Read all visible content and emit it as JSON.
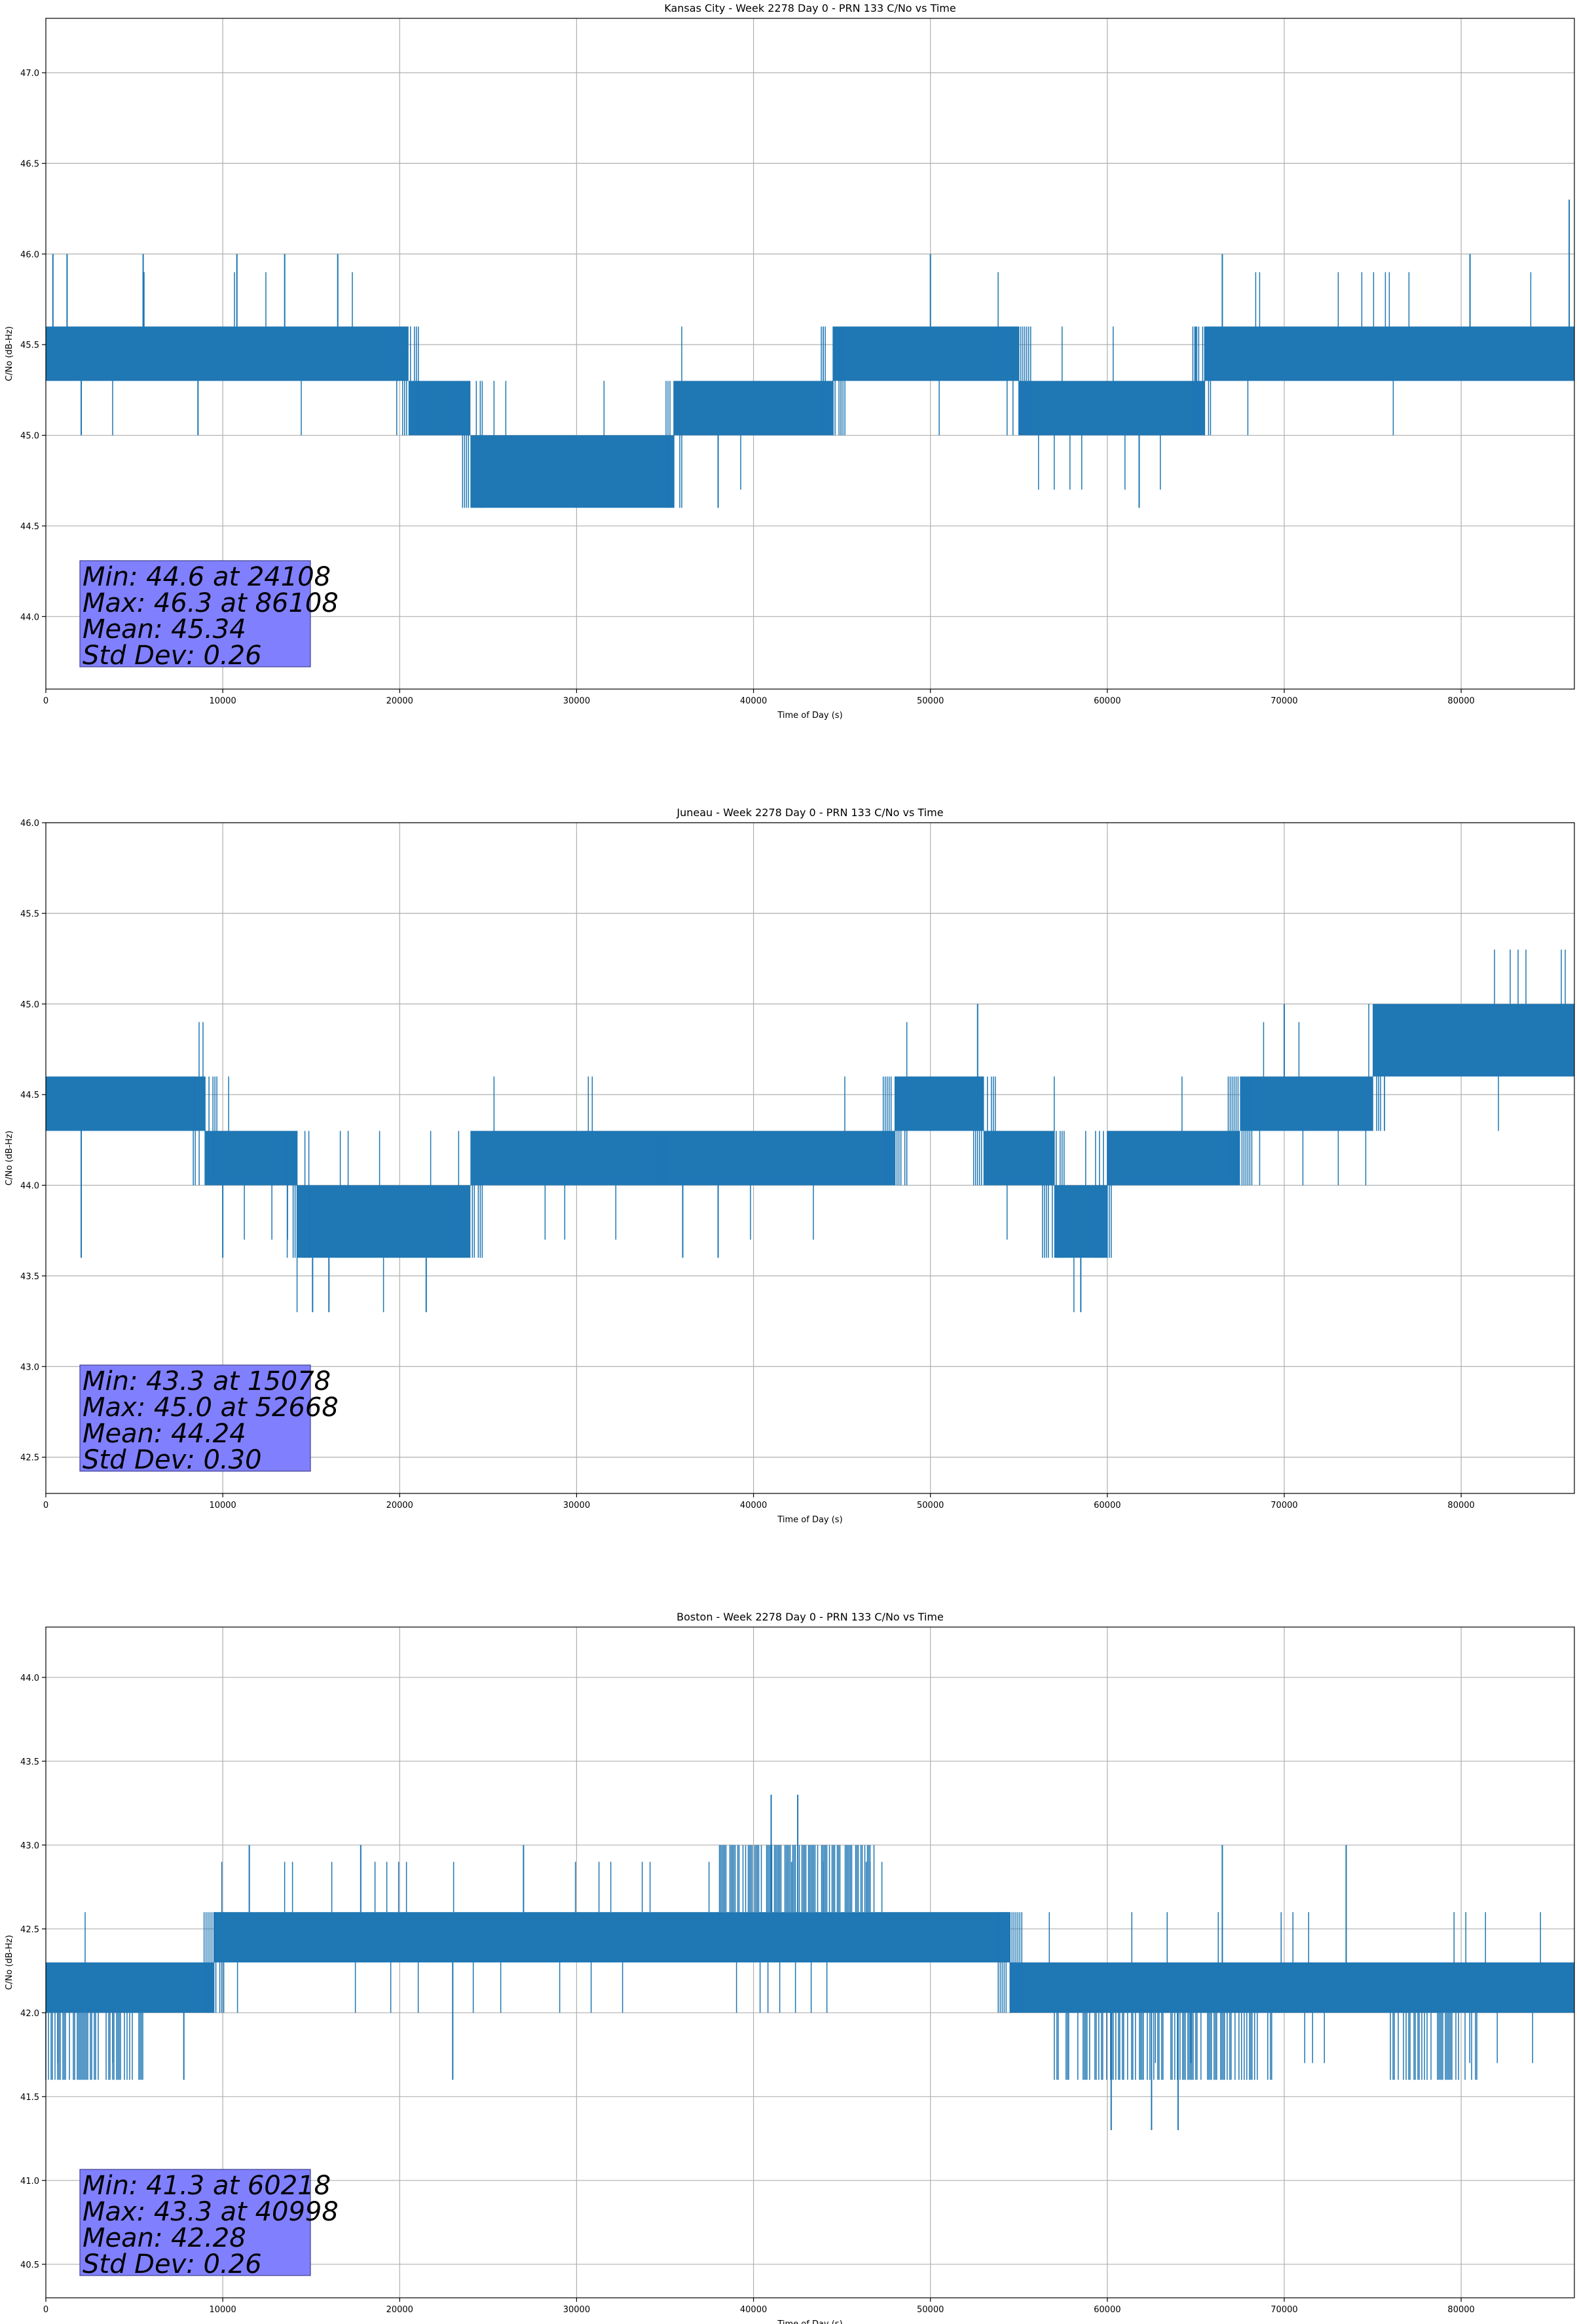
{
  "chart_data": [
    {
      "type": "line",
      "title": "Kansas City - Week 2278 Day 0 - PRN 133 C/No vs Time",
      "xlabel": "Time of Day (s)",
      "ylabel": "C/No (dB-Hz)",
      "xlim": [
        0,
        86400
      ],
      "ylim": [
        43.6,
        47.3
      ],
      "xticks": [
        0,
        10000,
        20000,
        30000,
        40000,
        50000,
        60000,
        70000,
        80000
      ],
      "yticks": [
        44.0,
        44.5,
        45.0,
        45.5,
        46.0,
        46.5,
        47.0
      ],
      "grid": true,
      "color": "#1f77b4",
      "baseline_segments": [
        {
          "x": [
            0,
            20500
          ],
          "low": 45.3,
          "high": 45.6
        },
        {
          "x": [
            20500,
            24000
          ],
          "low": 45.0,
          "high": 45.3
        },
        {
          "x": [
            24000,
            35500
          ],
          "low": 44.6,
          "high": 45.0
        },
        {
          "x": [
            35500,
            44500
          ],
          "low": 45.0,
          "high": 45.3
        },
        {
          "x": [
            44500,
            55000
          ],
          "low": 45.3,
          "high": 45.6
        },
        {
          "x": [
            55000,
            65500
          ],
          "low": 45.0,
          "high": 45.3
        },
        {
          "x": [
            65500,
            86400
          ],
          "low": 45.3,
          "high": 45.6
        }
      ],
      "spikes": [
        {
          "x": 400,
          "y": 46.0
        },
        {
          "x": 1200,
          "y": 46.0
        },
        {
          "x": 5500,
          "y": 46.0
        },
        {
          "x": 10800,
          "y": 46.0
        },
        {
          "x": 13500,
          "y": 46.0
        },
        {
          "x": 16500,
          "y": 46.0
        },
        {
          "x": 50000,
          "y": 46.0
        },
        {
          "x": 66500,
          "y": 46.0
        },
        {
          "x": 80500,
          "y": 46.0
        },
        {
          "x": 86108,
          "y": 46.3
        },
        {
          "x": 24108,
          "y": 44.6
        },
        {
          "x": 38000,
          "y": 44.6
        },
        {
          "x": 61800,
          "y": 44.6
        },
        {
          "x": 2000,
          "y": 45.0
        },
        {
          "x": 8600,
          "y": 45.0
        }
      ],
      "stats": {
        "min": "Min: 44.6 at 24108",
        "max": "Max: 46.3 at 86108",
        "mean": "Mean: 45.34",
        "std": "Std Dev: 0.26"
      }
    },
    {
      "type": "line",
      "title": "Juneau - Week 2278 Day 0 - PRN 133 C/No vs Time",
      "xlabel": "Time of Day (s)",
      "ylabel": "C/No (dB-Hz)",
      "xlim": [
        0,
        86400
      ],
      "ylim": [
        42.3,
        46.0
      ],
      "xticks": [
        0,
        10000,
        20000,
        30000,
        40000,
        50000,
        60000,
        70000,
        80000
      ],
      "yticks": [
        42.5,
        43.0,
        43.5,
        44.0,
        44.5,
        45.0,
        45.5,
        46.0
      ],
      "grid": true,
      "color": "#1f77b4",
      "baseline_segments": [
        {
          "x": [
            0,
            9000
          ],
          "low": 44.3,
          "high": 44.6
        },
        {
          "x": [
            9000,
            14200
          ],
          "low": 44.0,
          "high": 44.3
        },
        {
          "x": [
            14200,
            24000
          ],
          "low": 43.6,
          "high": 44.0
        },
        {
          "x": [
            24000,
            34500
          ],
          "low": 44.0,
          "high": 44.3
        },
        {
          "x": [
            34500,
            48000
          ],
          "low": 44.0,
          "high": 44.3
        },
        {
          "x": [
            48000,
            53000
          ],
          "low": 44.3,
          "high": 44.6
        },
        {
          "x": [
            53000,
            57000
          ],
          "low": 44.0,
          "high": 44.3
        },
        {
          "x": [
            57000,
            60000
          ],
          "low": 43.6,
          "high": 44.0
        },
        {
          "x": [
            60000,
            67500
          ],
          "low": 44.0,
          "high": 44.3
        },
        {
          "x": [
            67500,
            75000
          ],
          "low": 44.3,
          "high": 44.6
        },
        {
          "x": [
            75000,
            86400
          ],
          "low": 44.6,
          "high": 45.0
        }
      ],
      "spikes": [
        {
          "x": 15078,
          "y": 43.3
        },
        {
          "x": 16000,
          "y": 43.3
        },
        {
          "x": 21500,
          "y": 43.3
        },
        {
          "x": 58500,
          "y": 43.3
        },
        {
          "x": 52668,
          "y": 45.0
        },
        {
          "x": 70000,
          "y": 45.0
        },
        {
          "x": 2000,
          "y": 43.6
        },
        {
          "x": 36000,
          "y": 43.6
        },
        {
          "x": 38000,
          "y": 43.6
        },
        {
          "x": 10000,
          "y": 43.6
        }
      ],
      "stats": {
        "min": "Min: 43.3 at 15078",
        "max": "Max: 45.0 at 52668",
        "mean": "Mean: 44.24",
        "std": "Std Dev: 0.30"
      }
    },
    {
      "type": "line",
      "title": "Boston - Week 2278 Day 0 - PRN 133 C/No vs Time",
      "xlabel": "Time of Day (s)",
      "ylabel": "C/No (dB-Hz)",
      "xlim": [
        0,
        86400
      ],
      "ylim": [
        40.3,
        44.3
      ],
      "xticks": [
        0,
        10000,
        20000,
        30000,
        40000,
        50000,
        60000,
        70000,
        80000
      ],
      "yticks": [
        40.5,
        41.0,
        41.5,
        42.0,
        42.5,
        43.0,
        43.5,
        44.0
      ],
      "grid": true,
      "color": "#1f77b4",
      "baseline_segments": [
        {
          "x": [
            0,
            9500
          ],
          "low": 42.0,
          "high": 42.3
        },
        {
          "x": [
            9500,
            54500
          ],
          "low": 42.3,
          "high": 42.6
        },
        {
          "x": [
            54500,
            86400
          ],
          "low": 42.0,
          "high": 42.3
        }
      ],
      "dense_high": {
        "x": [
          38000,
          47000
        ],
        "low": 42.6,
        "high": 43.0
      },
      "dense_low": [
        {
          "x": [
            0,
            5500
          ],
          "low": 41.6,
          "high": 42.0
        },
        {
          "x": [
            57000,
            69500
          ],
          "low": 41.6,
          "high": 42.0
        },
        {
          "x": [
            76000,
            81000
          ],
          "low": 41.6,
          "high": 42.0
        }
      ],
      "spikes": [
        {
          "x": 60218,
          "y": 41.3
        },
        {
          "x": 62500,
          "y": 41.3
        },
        {
          "x": 64000,
          "y": 41.3
        },
        {
          "x": 40998,
          "y": 43.3
        },
        {
          "x": 42500,
          "y": 43.3
        },
        {
          "x": 11500,
          "y": 43.0
        },
        {
          "x": 17800,
          "y": 43.0
        },
        {
          "x": 27000,
          "y": 43.0
        },
        {
          "x": 66500,
          "y": 43.0
        },
        {
          "x": 73500,
          "y": 43.0
        },
        {
          "x": 7800,
          "y": 41.6
        },
        {
          "x": 23000,
          "y": 41.6
        }
      ],
      "stats": {
        "min": "Min: 41.3 at 60218",
        "max": "Max: 43.3 at 40998",
        "mean": "Mean: 42.28",
        "std": "Std Dev: 0.26"
      }
    }
  ]
}
